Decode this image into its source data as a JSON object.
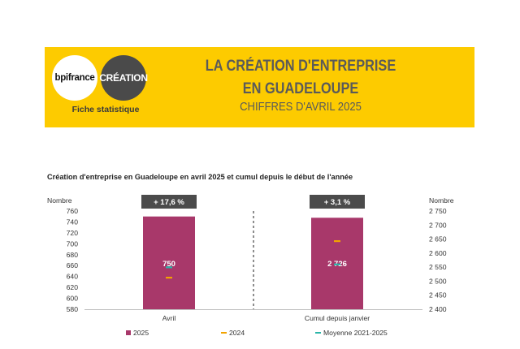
{
  "header": {
    "logo_bpifrance": "bpifrance",
    "logo_creation": "CRÉATION",
    "fiche": "Fiche statistique",
    "title_line1": "LA CRÉATION D'ENTREPRISE",
    "title_line2": "EN GUADELOUPE",
    "subtitle": "CHIFFRES D'AVRIL 2025"
  },
  "colors": {
    "banner": "#FDCB00",
    "bar_2025": "#A8386A",
    "marker_2024": "#F2A300",
    "marker_avg": "#2BB5A8"
  },
  "chart_data": {
    "type": "bar",
    "title": "Création d'entreprise en Guadeloupe en avril 2025 et cumul depuis le début de l'année",
    "left_axis": {
      "label": "Nombre",
      "ylim": [
        580,
        760
      ],
      "ticks": [
        "580",
        "600",
        "620",
        "640",
        "660",
        "680",
        "700",
        "720",
        "740",
        "760"
      ]
    },
    "right_axis": {
      "label": "Nombre",
      "ylim": [
        2400,
        2750
      ],
      "ticks": [
        "2 400",
        "2 450",
        "2 500",
        "2 550",
        "2 600",
        "2 650",
        "2 700",
        "2 750"
      ]
    },
    "categories": [
      "Avril",
      "Cumul depuis janvier"
    ],
    "series": [
      {
        "name": "2025",
        "values": [
          750,
          2726
        ],
        "display": [
          "750",
          "2 726"
        ]
      },
      {
        "name": "2024",
        "values": [
          638,
          2643
        ]
      },
      {
        "name": "Moyenne 2021-2025",
        "values": [
          657,
          2560
        ]
      }
    ],
    "changes": [
      "+ 17,6 %",
      "+ 3,1 %"
    ],
    "legend_position": "bottom"
  }
}
